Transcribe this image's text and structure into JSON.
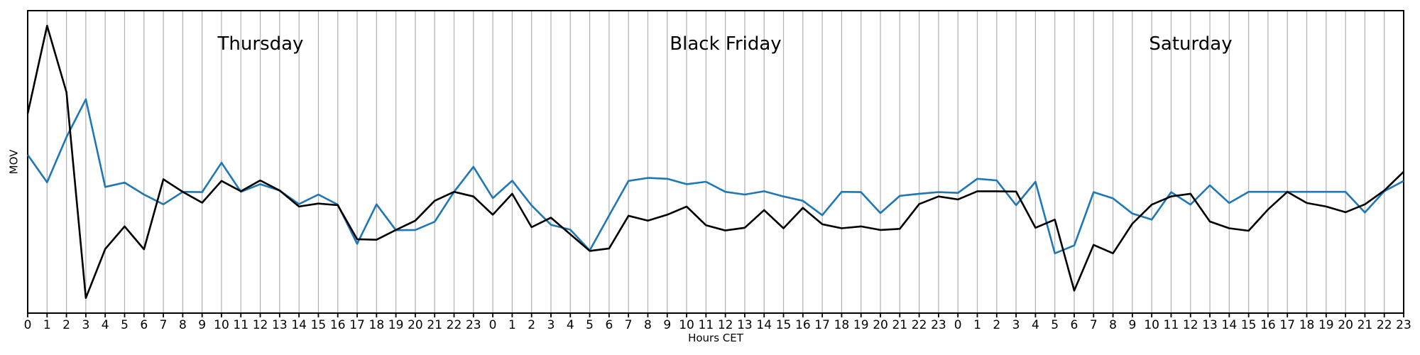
{
  "figure": {
    "ylabel": "MOV",
    "xlabel": "Hours CET",
    "background_color": "#ffffff",
    "grid_color": "#b0b0b0",
    "frame_color": "#000000",
    "annotations": [
      {
        "label": "Thursday",
        "center_hour_index": 12
      },
      {
        "label": "Black Friday",
        "center_hour_index": 36
      },
      {
        "label": "Saturday",
        "center_hour_index": 60
      }
    ]
  },
  "chart_data": {
    "type": "line",
    "title": "",
    "xlabel": "Hours CET",
    "ylabel": "MOV",
    "x_axis": "72 consecutive hours over three days, ticks labeled 0-23 per day",
    "x_tick_labels": [
      "0",
      "1",
      "2",
      "3",
      "4",
      "5",
      "6",
      "7",
      "8",
      "9",
      "10",
      "11",
      "12",
      "13",
      "14",
      "15",
      "16",
      "17",
      "18",
      "19",
      "20",
      "21",
      "22",
      "23",
      "0",
      "1",
      "2",
      "3",
      "4",
      "5",
      "6",
      "7",
      "8",
      "9",
      "10",
      "11",
      "12",
      "13",
      "14",
      "15",
      "16",
      "17",
      "18",
      "19",
      "20",
      "21",
      "22",
      "23",
      "0",
      "1",
      "2",
      "3",
      "4",
      "5",
      "6",
      "7",
      "8",
      "9",
      "10",
      "11",
      "12",
      "13",
      "14",
      "15",
      "16",
      "17",
      "18",
      "19",
      "20",
      "21",
      "22",
      "23"
    ],
    "days": [
      {
        "name": "Thursday",
        "start_index": 0
      },
      {
        "name": "Black Friday",
        "start_index": 24
      },
      {
        "name": "Saturday",
        "start_index": 48
      }
    ],
    "ylim": [
      0,
      100
    ],
    "y_units": "relative MOV (no tick labels shown)",
    "y_ticks_visible": false,
    "grid": "vertical-hourly",
    "legend": "none",
    "annotations": [
      {
        "label": "Thursday",
        "center_hour_index": 12
      },
      {
        "label": "Black Friday",
        "center_hour_index": 36
      },
      {
        "label": "Saturday",
        "center_hour_index": 60
      }
    ],
    "series": [
      {
        "name": "series-black",
        "color": "#000000",
        "values": [
          67.7,
          100,
          75.6,
          0,
          18.0,
          26.3,
          17.9,
          43.6,
          39.0,
          35.0,
          43.0,
          39.2,
          43.2,
          39.5,
          33.6,
          34.7,
          34.1,
          21.6,
          21.4,
          25.0,
          28.4,
          35.7,
          39.0,
          37.3,
          30.6,
          38.3,
          26.0,
          29.5,
          23.4,
          17.3,
          18.2,
          30.2,
          28.4,
          30.6,
          33.6,
          26.7,
          24.8,
          25.8,
          32.3,
          25.6,
          33.1,
          27.1,
          25.6,
          26.3,
          25.0,
          25.4,
          34.5,
          37.3,
          36.2,
          39.2,
          39.2,
          39.1,
          25.8,
          28.8,
          2.7,
          19.5,
          16.4,
          27.3,
          34.3,
          37.3,
          38.3,
          28.1,
          25.6,
          24.7,
          32.5,
          39.0,
          34.9,
          33.6,
          31.5,
          34.4,
          39.5,
          46.4
        ]
      },
      {
        "name": "series-blue",
        "color": "#1f77b4",
        "values": [
          52.6,
          42.5,
          59.1,
          73.0,
          40.8,
          42.4,
          38.0,
          34.4,
          39.0,
          38.9,
          49.7,
          39.0,
          41.8,
          39.5,
          34.5,
          38.0,
          34.3,
          19.9,
          34.4,
          24.9,
          25.0,
          28.0,
          39.0,
          48.2,
          36.7,
          43.1,
          34.0,
          26.9,
          25.1,
          17.5,
          30.3,
          43.0,
          44.1,
          43.8,
          41.8,
          42.7,
          39.0,
          38.0,
          39.2,
          37.3,
          35.7,
          30.4,
          39.0,
          38.9,
          31.2,
          37.5,
          38.3,
          38.9,
          38.6,
          43.8,
          43.2,
          34.1,
          42.7,
          16.4,
          19.3,
          38.9,
          36.6,
          31.0,
          28.8,
          38.9,
          34.3,
          41.4,
          34.9,
          39.0,
          39.0,
          39.0,
          39.0,
          39.0,
          39.0,
          31.4,
          39.2,
          43.0
        ]
      }
    ]
  }
}
